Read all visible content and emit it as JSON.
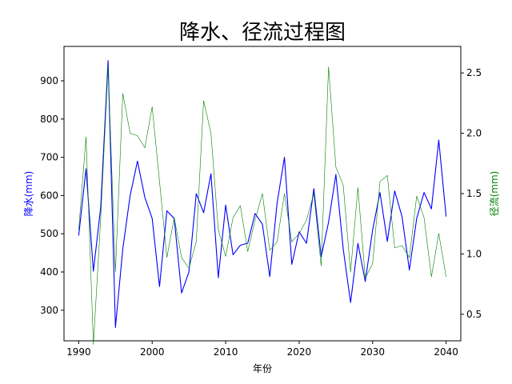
{
  "chart_data": {
    "type": "line",
    "title": "降水、径流过程图",
    "xlabel": "年份",
    "ylabel_left": "降水(mm)",
    "ylabel_right": "径流(mm)",
    "xlim": [
      1988,
      2042
    ],
    "ylim_left": [
      220,
      990
    ],
    "ylim_right": [
      0.28,
      2.72
    ],
    "x_ticks": [
      1990,
      2000,
      2010,
      2020,
      2030,
      2040
    ],
    "y_ticks_left": [
      300,
      400,
      500,
      600,
      700,
      800,
      900
    ],
    "y_ticks_right": [
      0.5,
      1.0,
      1.5,
      2.0,
      2.5
    ],
    "grid": false,
    "colors": {
      "precip": "#0000ff",
      "runoff": "#008000",
      "axis": "#000000"
    },
    "x": [
      1990,
      1991,
      1992,
      1993,
      1994,
      1995,
      1996,
      1997,
      1998,
      1999,
      2000,
      2001,
      2002,
      2003,
      2004,
      2005,
      2006,
      2007,
      2008,
      2009,
      2010,
      2011,
      2012,
      2013,
      2014,
      2015,
      2016,
      2017,
      2018,
      2019,
      2020,
      2021,
      2022,
      2023,
      2024,
      2025,
      2026,
      2027,
      2028,
      2029,
      2030,
      2031,
      2032,
      2033,
      2034,
      2035,
      2036,
      2037,
      2038,
      2039,
      2040
    ],
    "series": [
      {
        "axis": "left",
        "values": [
          495,
          670,
          402,
          570,
          953,
          255,
          460,
          600,
          690,
          595,
          540,
          362,
          560,
          540,
          345,
          400,
          605,
          555,
          657,
          385,
          575,
          445,
          470,
          475,
          553,
          525,
          388,
          580,
          700,
          420,
          505,
          475,
          618,
          440,
          530,
          655,
          460,
          320,
          475,
          375,
          510,
          608,
          480,
          612,
          545,
          405,
          540,
          608,
          565,
          745,
          545
        ]
      },
      {
        "axis": "right",
        "values": [
          1.2,
          1.97,
          0.25,
          1.3,
          2.55,
          0.85,
          2.33,
          2.0,
          1.98,
          1.88,
          2.22,
          1.6,
          0.97,
          1.3,
          0.97,
          0.88,
          1.1,
          2.27,
          2.0,
          1.2,
          0.98,
          1.3,
          1.4,
          1.02,
          1.28,
          1.5,
          1.03,
          1.1,
          1.5,
          1.1,
          1.17,
          1.28,
          1.5,
          0.9,
          2.55,
          1.72,
          1.57,
          0.85,
          1.55,
          0.8,
          0.92,
          1.6,
          1.65,
          1.05,
          1.07,
          0.97,
          1.48,
          1.3,
          0.81,
          1.17,
          0.81
        ]
      }
    ]
  }
}
